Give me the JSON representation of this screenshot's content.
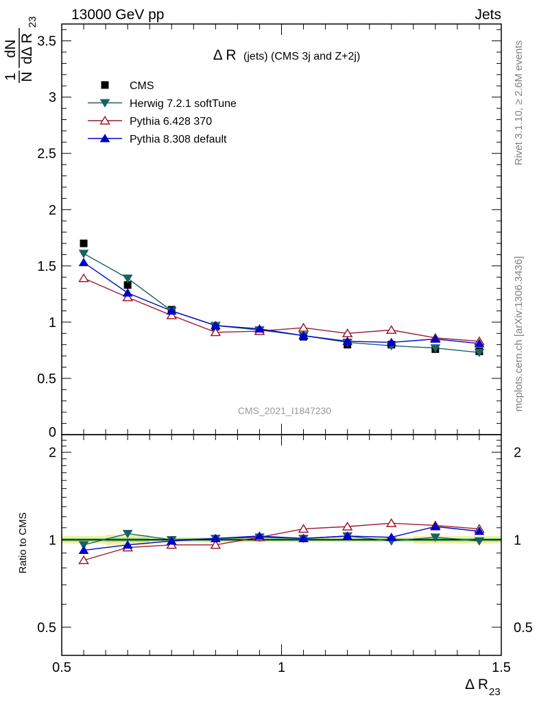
{
  "header": {
    "left": "13000 GeV pp",
    "right": "Jets"
  },
  "side_labels": {
    "rivet": "Rivet 3.1.10, ≥ 2.6M events",
    "mcplots": "mcplots.cern.ch [arXiv:1306.3436]"
  },
  "watermark": "CMS_2021_I1847230",
  "chart_data": [
    {
      "type": "scatter",
      "title_main": "Δ R",
      "title_sub": "(jets) (CMS 3j and Z+2j)",
      "ylabel": {
        "num": "1",
        "den": "N",
        "dN": "dN",
        "dR": "dΔ R",
        "sub": "23"
      },
      "xlim": [
        0.5,
        1.5
      ],
      "ylim": [
        0,
        3.65
      ],
      "yticks": [
        0.5,
        1,
        1.5,
        2,
        2.5,
        3,
        3.5
      ],
      "ytick_labels": [
        "0.5",
        "1",
        "1.5",
        "2",
        "2.5",
        "3",
        "3.5"
      ],
      "ytick_zero_label": "0",
      "x": [
        0.55,
        0.65,
        0.75,
        0.85,
        0.95,
        1.05,
        1.15,
        1.25,
        1.35,
        1.45
      ],
      "legend_position": "top-left",
      "series": [
        {
          "name": "CMS",
          "color": "#000000",
          "marker": "square",
          "values": [
            1.7,
            1.33,
            1.11,
            0.96,
            0.92,
            0.87,
            0.8,
            0.8,
            0.76,
            0.74
          ]
        },
        {
          "name": "Herwig 7.2.1 softTune",
          "color": "#1b6161",
          "marker": "triangle-down",
          "values": [
            1.61,
            1.39,
            1.1,
            0.97,
            0.93,
            0.88,
            0.82,
            0.79,
            0.77,
            0.73
          ]
        },
        {
          "name": "Pythia 6.428 370",
          "color": "#9b1a2e",
          "marker": "triangle-up-open",
          "values": [
            1.39,
            1.22,
            1.06,
            0.91,
            0.92,
            0.95,
            0.9,
            0.93,
            0.86,
            0.83
          ]
        },
        {
          "name": "Pythia 8.308 default",
          "color": "#0000cc",
          "marker": "triangle-up",
          "values": [
            1.53,
            1.26,
            1.1,
            0.97,
            0.94,
            0.88,
            0.83,
            0.82,
            0.85,
            0.81
          ]
        }
      ]
    },
    {
      "type": "line",
      "ylabel": "Ratio to CMS",
      "xlabel": {
        "main": "Δ R",
        "sub": "23"
      },
      "xlim": [
        0.5,
        1.5
      ],
      "ylim": [
        0.4,
        2.3
      ],
      "log_y": true,
      "xticks": [
        0.5,
        1,
        1.5
      ],
      "xtick_labels": [
        "0.5",
        "1",
        "1.5"
      ],
      "yticks": [
        0.5,
        1,
        2
      ],
      "ytick_labels": [
        "0.5",
        "1",
        "2"
      ],
      "x": [
        0.55,
        0.65,
        0.75,
        0.85,
        0.95,
        1.05,
        1.15,
        1.25,
        1.35,
        1.45
      ],
      "band_colors": {
        "outer": "#f0f0a0",
        "inner": "#80d080"
      },
      "band_outer": [
        0.03,
        0.04,
        0.02,
        0.02,
        0.02,
        0.02,
        0.02,
        0.02,
        0.03,
        0.03
      ],
      "band_inner": [
        0.012,
        0.015,
        0.01,
        0.01,
        0.01,
        0.01,
        0.01,
        0.01,
        0.012,
        0.012
      ],
      "series": [
        {
          "name": "Herwig 7.2.1 softTune",
          "color": "#1b6161",
          "marker": "triangle-down",
          "values": [
            0.96,
            1.05,
            1.0,
            1.01,
            1.02,
            1.01,
            1.03,
            0.99,
            1.02,
            0.99
          ]
        },
        {
          "name": "Pythia 6.428 370",
          "color": "#9b1a2e",
          "marker": "triangle-up-open",
          "values": [
            0.85,
            0.94,
            0.96,
            0.96,
            1.02,
            1.09,
            1.11,
            1.14,
            1.12,
            1.09
          ]
        },
        {
          "name": "Pythia 8.308 default",
          "color": "#0000cc",
          "marker": "triangle-up",
          "values": [
            0.92,
            0.96,
            0.99,
            1.01,
            1.03,
            1.01,
            1.03,
            1.02,
            1.11,
            1.07
          ]
        }
      ]
    }
  ]
}
